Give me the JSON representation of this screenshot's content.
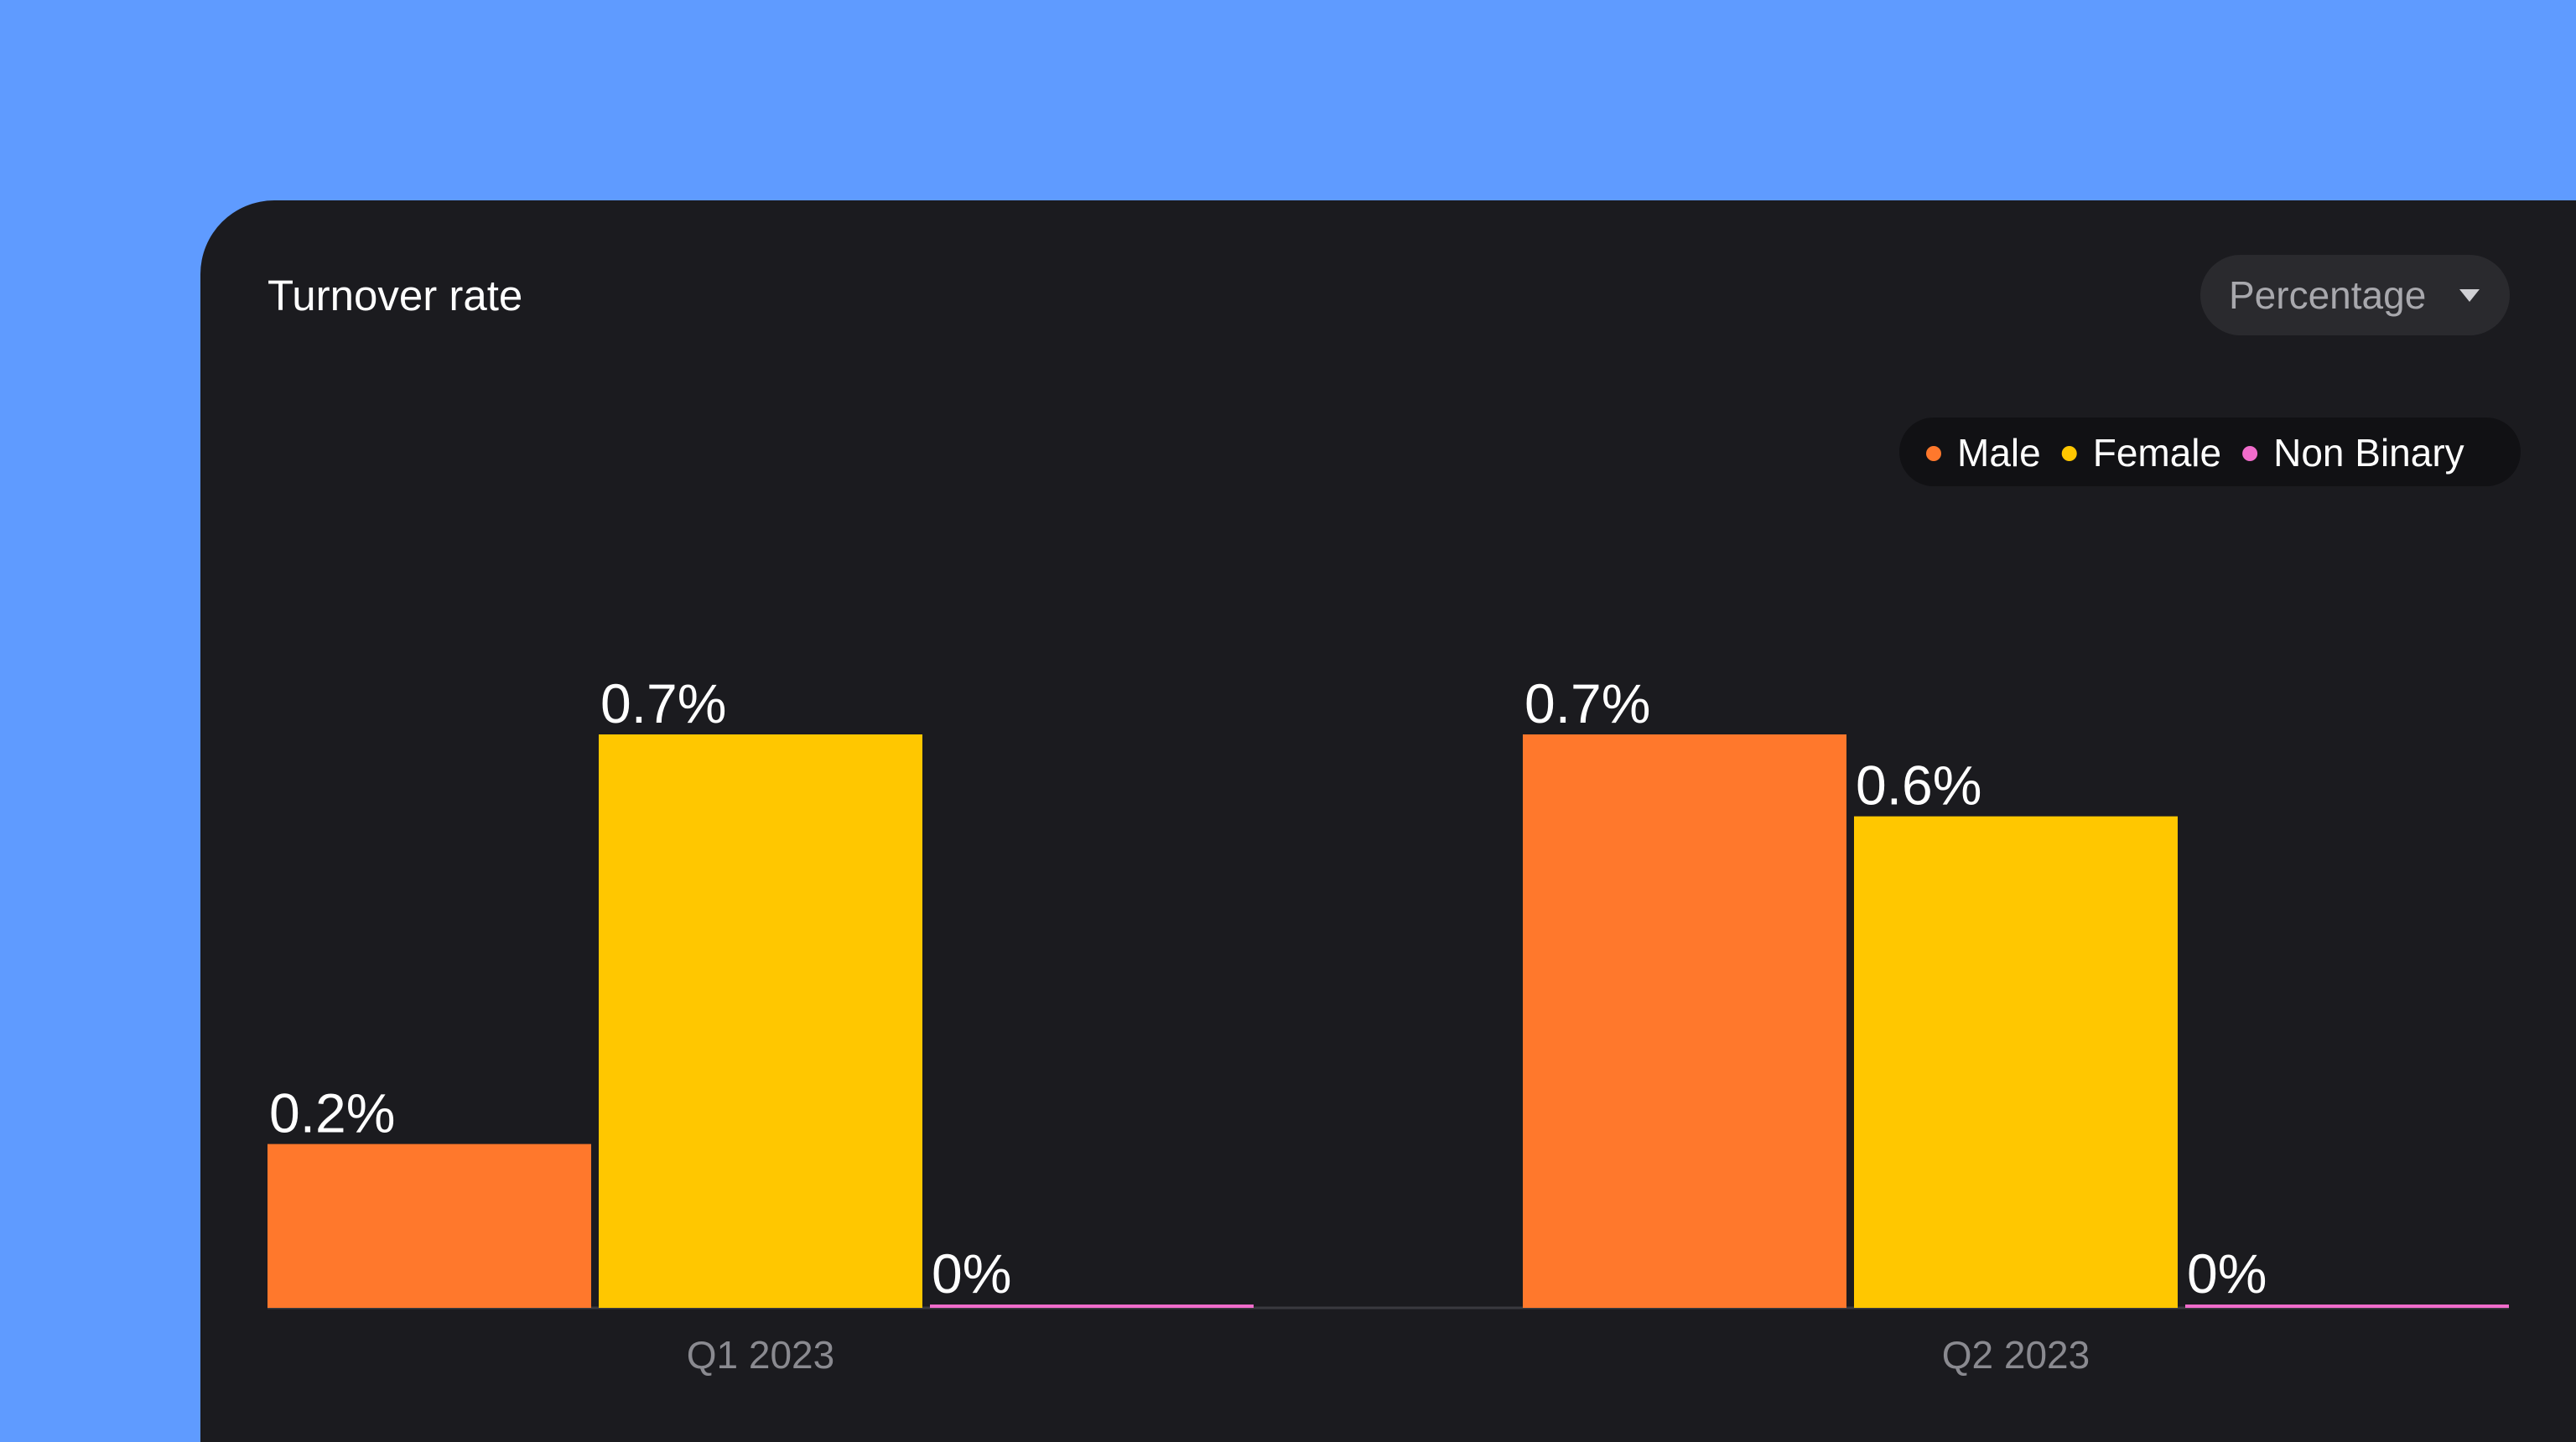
{
  "chart_data": {
    "type": "bar",
    "title": "Turnover rate",
    "categories": [
      "Q1 2023",
      "Q2 2023"
    ],
    "series": [
      {
        "name": "Male",
        "color": "#ff782c",
        "values": [
          0.2,
          0.7
        ],
        "value_labels": [
          "0.2%",
          "0.7%"
        ]
      },
      {
        "name": "Female",
        "color": "#ffc700",
        "values": [
          0.7,
          0.6
        ],
        "value_labels": [
          "0.7%",
          "0.6%"
        ]
      },
      {
        "name": "Non Binary",
        "color": "#f06ccb",
        "values": [
          0,
          0
        ],
        "value_labels": [
          "0%",
          "0%"
        ]
      }
    ]
  },
  "dropdown": {
    "label": "Percentage"
  }
}
